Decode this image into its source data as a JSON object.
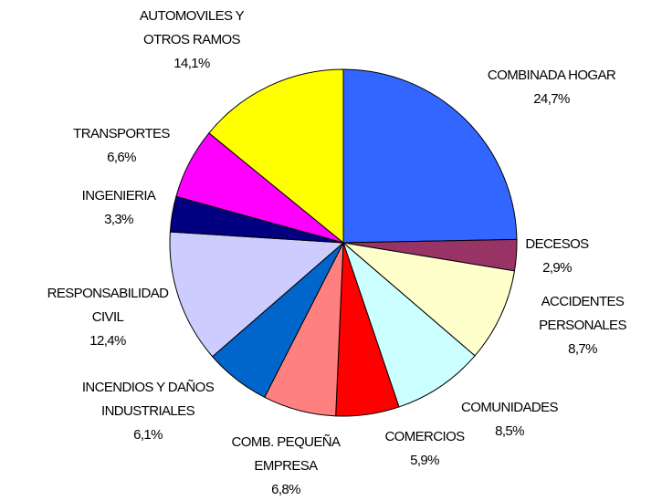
{
  "chart_data": {
    "type": "pie",
    "categories": [
      "COMBINADA HOGAR",
      "DECESOS",
      "ACCIDENTES\nPERSONALES",
      "COMUNIDADES",
      "COMERCIOS",
      "COMB. PEQUEÑA\nEMPRESA",
      "INCENDIOS Y DAÑOS\nINDUSTRIALES",
      "RESPONSABILIDAD\nCIVIL",
      "INGENIERIA",
      "TRANSPORTES",
      "AUTOMOVILES Y\nOTROS RAMOS"
    ],
    "values": [
      24.7,
      2.9,
      8.7,
      8.5,
      5.9,
      6.8,
      6.1,
      12.4,
      3.3,
      6.6,
      14.1
    ],
    "value_labels": [
      "24,7%",
      "2,9%",
      "8,7%",
      "8,5%",
      "5,9%",
      "6,8%",
      "6,1%",
      "12,4%",
      "3,3%",
      "6,6%",
      "14,1%"
    ],
    "colors": [
      "#3366FF",
      "#993366",
      "#FFFFCC",
      "#CCFFFF",
      "#FF0000",
      "#FF8080",
      "#0066CC",
      "#CCCCFF",
      "#000080",
      "#FF00FF",
      "#FFFF00"
    ]
  }
}
